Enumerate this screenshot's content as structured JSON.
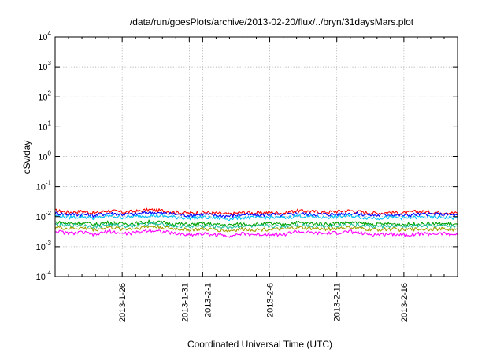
{
  "chart_data": {
    "type": "line",
    "title": "/data/run/goesPlots/archive/2013-02-20/flux/../bryn/31daysMars.plot",
    "xlabel": "Coordinated Universal Time (UTC)",
    "ylabel": "cSv/day",
    "yscale": "log",
    "ylim": [
      0.0001,
      10000
    ],
    "y_ticks": [
      {
        "value": 0.0001,
        "base": "10",
        "exp": "-4"
      },
      {
        "value": 0.001,
        "base": "10",
        "exp": "-3"
      },
      {
        "value": 0.01,
        "base": "10",
        "exp": "-2"
      },
      {
        "value": 0.1,
        "base": "10",
        "exp": "-1"
      },
      {
        "value": 1,
        "base": "10",
        "exp": "0"
      },
      {
        "value": 10,
        "base": "10",
        "exp": "1"
      },
      {
        "value": 100,
        "base": "10",
        "exp": "2"
      },
      {
        "value": 1000,
        "base": "10",
        "exp": "3"
      },
      {
        "value": 10000,
        "base": "10",
        "exp": "4"
      }
    ],
    "xlim": [
      "2013-01-21",
      "2013-02-20"
    ],
    "x_ticks": [
      "2013-1-26",
      "2013-1-31",
      "2013-2-1",
      "2013-2-6",
      "2013-2-11",
      "2013-2-16"
    ],
    "grid": true,
    "series": [
      {
        "color": "#ff0000",
        "x": [
          "2013-01-21",
          "2013-01-22",
          "2013-01-23",
          "2013-01-24",
          "2013-01-25",
          "2013-01-26",
          "2013-01-27",
          "2013-01-28",
          "2013-01-29",
          "2013-01-30",
          "2013-01-31",
          "2013-02-01",
          "2013-02-02",
          "2013-02-03",
          "2013-02-04",
          "2013-02-05",
          "2013-02-06",
          "2013-02-07",
          "2013-02-08",
          "2013-02-09",
          "2013-02-10",
          "2013-02-11",
          "2013-02-12",
          "2013-02-13",
          "2013-02-14",
          "2013-02-15",
          "2013-02-16",
          "2013-02-17",
          "2013-02-18",
          "2013-02-19",
          "2013-02-20"
        ],
        "values": [
          0.016,
          0.014,
          0.015,
          0.013,
          0.016,
          0.014,
          0.015,
          0.017,
          0.016,
          0.014,
          0.013,
          0.014,
          0.013,
          0.012,
          0.014,
          0.013,
          0.014,
          0.013,
          0.016,
          0.015,
          0.014,
          0.015,
          0.016,
          0.014,
          0.013,
          0.014,
          0.013,
          0.015,
          0.014,
          0.014,
          0.013
        ]
      },
      {
        "color": "#0000ff",
        "x": [
          "2013-01-21",
          "2013-01-22",
          "2013-01-23",
          "2013-01-24",
          "2013-01-25",
          "2013-01-26",
          "2013-01-27",
          "2013-01-28",
          "2013-01-29",
          "2013-01-30",
          "2013-01-31",
          "2013-02-01",
          "2013-02-02",
          "2013-02-03",
          "2013-02-04",
          "2013-02-05",
          "2013-02-06",
          "2013-02-07",
          "2013-02-08",
          "2013-02-09",
          "2013-02-10",
          "2013-02-11",
          "2013-02-12",
          "2013-02-13",
          "2013-02-14",
          "2013-02-15",
          "2013-02-16",
          "2013-02-17",
          "2013-02-18",
          "2013-02-19",
          "2013-02-20"
        ],
        "values": [
          0.013,
          0.012,
          0.012,
          0.011,
          0.013,
          0.012,
          0.012,
          0.014,
          0.013,
          0.012,
          0.011,
          0.012,
          0.011,
          0.0105,
          0.012,
          0.011,
          0.012,
          0.011,
          0.013,
          0.012,
          0.012,
          0.012,
          0.013,
          0.012,
          0.011,
          0.012,
          0.011,
          0.012,
          0.012,
          0.012,
          0.011
        ]
      },
      {
        "color": "#00c0ff",
        "x": [
          "2013-01-21",
          "2013-01-22",
          "2013-01-23",
          "2013-01-24",
          "2013-01-25",
          "2013-01-26",
          "2013-01-27",
          "2013-01-28",
          "2013-01-29",
          "2013-01-30",
          "2013-01-31",
          "2013-02-01",
          "2013-02-02",
          "2013-02-03",
          "2013-02-04",
          "2013-02-05",
          "2013-02-06",
          "2013-02-07",
          "2013-02-08",
          "2013-02-09",
          "2013-02-10",
          "2013-02-11",
          "2013-02-12",
          "2013-02-13",
          "2013-02-14",
          "2013-02-15",
          "2013-02-16",
          "2013-02-17",
          "2013-02-18",
          "2013-02-19",
          "2013-02-20"
        ],
        "values": [
          0.0105,
          0.0095,
          0.01,
          0.009,
          0.0105,
          0.0095,
          0.01,
          0.011,
          0.0105,
          0.0095,
          0.009,
          0.0095,
          0.009,
          0.0085,
          0.0095,
          0.009,
          0.0095,
          0.009,
          0.0105,
          0.01,
          0.0095,
          0.01,
          0.0105,
          0.0095,
          0.009,
          0.0095,
          0.009,
          0.0095,
          0.0095,
          0.0095,
          0.009
        ]
      },
      {
        "color": "#00a000",
        "x": [
          "2013-01-21",
          "2013-01-22",
          "2013-01-23",
          "2013-01-24",
          "2013-01-25",
          "2013-01-26",
          "2013-01-27",
          "2013-01-28",
          "2013-01-29",
          "2013-01-30",
          "2013-01-31",
          "2013-02-01",
          "2013-02-02",
          "2013-02-03",
          "2013-02-04",
          "2013-02-05",
          "2013-02-06",
          "2013-02-07",
          "2013-02-08",
          "2013-02-09",
          "2013-02-10",
          "2013-02-11",
          "2013-02-12",
          "2013-02-13",
          "2013-02-14",
          "2013-02-15",
          "2013-02-16",
          "2013-02-17",
          "2013-02-18",
          "2013-02-19",
          "2013-02-20"
        ],
        "values": [
          0.0065,
          0.006,
          0.0062,
          0.0055,
          0.0065,
          0.0058,
          0.006,
          0.0068,
          0.0064,
          0.0058,
          0.0055,
          0.0058,
          0.0055,
          0.0052,
          0.0058,
          0.0055,
          0.0058,
          0.0055,
          0.0064,
          0.006,
          0.0058,
          0.006,
          0.0064,
          0.0058,
          0.0055,
          0.0058,
          0.0055,
          0.0058,
          0.0058,
          0.0058,
          0.0055
        ]
      },
      {
        "color": "#20c0a0",
        "x": [
          "2013-01-21",
          "2013-01-22",
          "2013-01-23",
          "2013-01-24",
          "2013-01-25",
          "2013-01-26",
          "2013-01-27",
          "2013-01-28",
          "2013-01-29",
          "2013-01-30",
          "2013-01-31",
          "2013-02-01",
          "2013-02-02",
          "2013-02-03",
          "2013-02-04",
          "2013-02-05",
          "2013-02-06",
          "2013-02-07",
          "2013-02-08",
          "2013-02-09",
          "2013-02-10",
          "2013-02-11",
          "2013-02-12",
          "2013-02-13",
          "2013-02-14",
          "2013-02-15",
          "2013-02-16",
          "2013-02-17",
          "2013-02-18",
          "2013-02-19",
          "2013-02-20"
        ],
        "values": [
          0.0055,
          0.005,
          0.0052,
          0.0047,
          0.0055,
          0.0049,
          0.0051,
          0.0058,
          0.0054,
          0.0049,
          0.0047,
          0.0049,
          0.0047,
          0.0044,
          0.0049,
          0.0047,
          0.0049,
          0.0047,
          0.0054,
          0.0051,
          0.0049,
          0.0051,
          0.0054,
          0.0049,
          0.0047,
          0.0049,
          0.0047,
          0.0049,
          0.0049,
          0.0049,
          0.0047
        ]
      },
      {
        "color": "#a0a000",
        "x": [
          "2013-01-21",
          "2013-01-22",
          "2013-01-23",
          "2013-01-24",
          "2013-01-25",
          "2013-01-26",
          "2013-01-27",
          "2013-01-28",
          "2013-01-29",
          "2013-01-30",
          "2013-01-31",
          "2013-02-01",
          "2013-02-02",
          "2013-02-03",
          "2013-02-04",
          "2013-02-05",
          "2013-02-06",
          "2013-02-07",
          "2013-02-08",
          "2013-02-09",
          "2013-02-10",
          "2013-02-11",
          "2013-02-12",
          "2013-02-13",
          "2013-02-14",
          "2013-02-15",
          "2013-02-16",
          "2013-02-17",
          "2013-02-18",
          "2013-02-19",
          "2013-02-20"
        ],
        "values": [
          0.0045,
          0.004,
          0.0042,
          0.0037,
          0.0045,
          0.0039,
          0.0041,
          0.0048,
          0.0044,
          0.0039,
          0.0037,
          0.0039,
          0.0037,
          0.0034,
          0.0039,
          0.0037,
          0.0039,
          0.0037,
          0.0044,
          0.0041,
          0.0039,
          0.0041,
          0.0044,
          0.0039,
          0.0037,
          0.0039,
          0.0037,
          0.0039,
          0.0039,
          0.0039,
          0.0037
        ]
      },
      {
        "color": "#ff00ff",
        "x": [
          "2013-01-21",
          "2013-01-22",
          "2013-01-23",
          "2013-01-24",
          "2013-01-25",
          "2013-01-26",
          "2013-01-27",
          "2013-01-28",
          "2013-01-29",
          "2013-01-30",
          "2013-01-31",
          "2013-02-01",
          "2013-02-02",
          "2013-02-03",
          "2013-02-04",
          "2013-02-05",
          "2013-02-06",
          "2013-02-07",
          "2013-02-08",
          "2013-02-09",
          "2013-02-10",
          "2013-02-11",
          "2013-02-12",
          "2013-02-13",
          "2013-02-14",
          "2013-02-15",
          "2013-02-16",
          "2013-02-17",
          "2013-02-18",
          "2013-02-19",
          "2013-02-20"
        ],
        "values": [
          0.0033,
          0.0028,
          0.003,
          0.0025,
          0.0033,
          0.0027,
          0.0029,
          0.0036,
          0.0032,
          0.0027,
          0.0025,
          0.0027,
          0.0025,
          0.0023,
          0.0027,
          0.0025,
          0.0027,
          0.0025,
          0.0032,
          0.0029,
          0.0027,
          0.0029,
          0.0032,
          0.0027,
          0.0025,
          0.0027,
          0.0025,
          0.0027,
          0.0027,
          0.0027,
          0.0025
        ]
      }
    ]
  }
}
